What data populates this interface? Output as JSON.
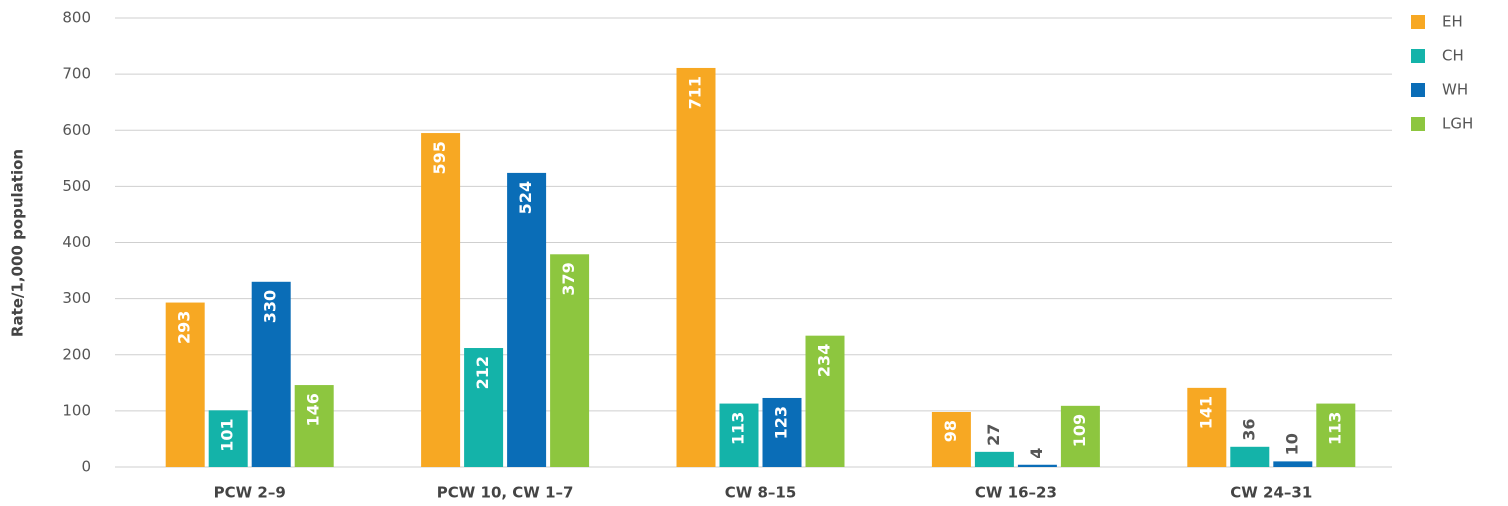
{
  "chart_data": {
    "type": "bar",
    "y_label": "Rate/1,000 population",
    "categories": [
      "PCW 2–9",
      "PCW 10, CW 1–7",
      "CW 8–15",
      "CW 16–23",
      "CW 24–31"
    ],
    "series": [
      {
        "name": "EH",
        "color": "#f7a823",
        "values": [
          293,
          595,
          711,
          98,
          141
        ]
      },
      {
        "name": "CH",
        "color": "#14b3a9",
        "values": [
          101,
          212,
          113,
          27,
          36
        ]
      },
      {
        "name": "WH",
        "color": "#0a6db7",
        "values": [
          330,
          524,
          123,
          4,
          10
        ]
      },
      {
        "name": "LGH",
        "color": "#8dc63f",
        "values": [
          146,
          379,
          234,
          109,
          113
        ]
      }
    ],
    "ylim": [
      0,
      800
    ],
    "yticks": [
      0,
      100,
      200,
      300,
      400,
      500,
      600,
      700,
      800
    ],
    "grid": true,
    "legend": "right"
  }
}
